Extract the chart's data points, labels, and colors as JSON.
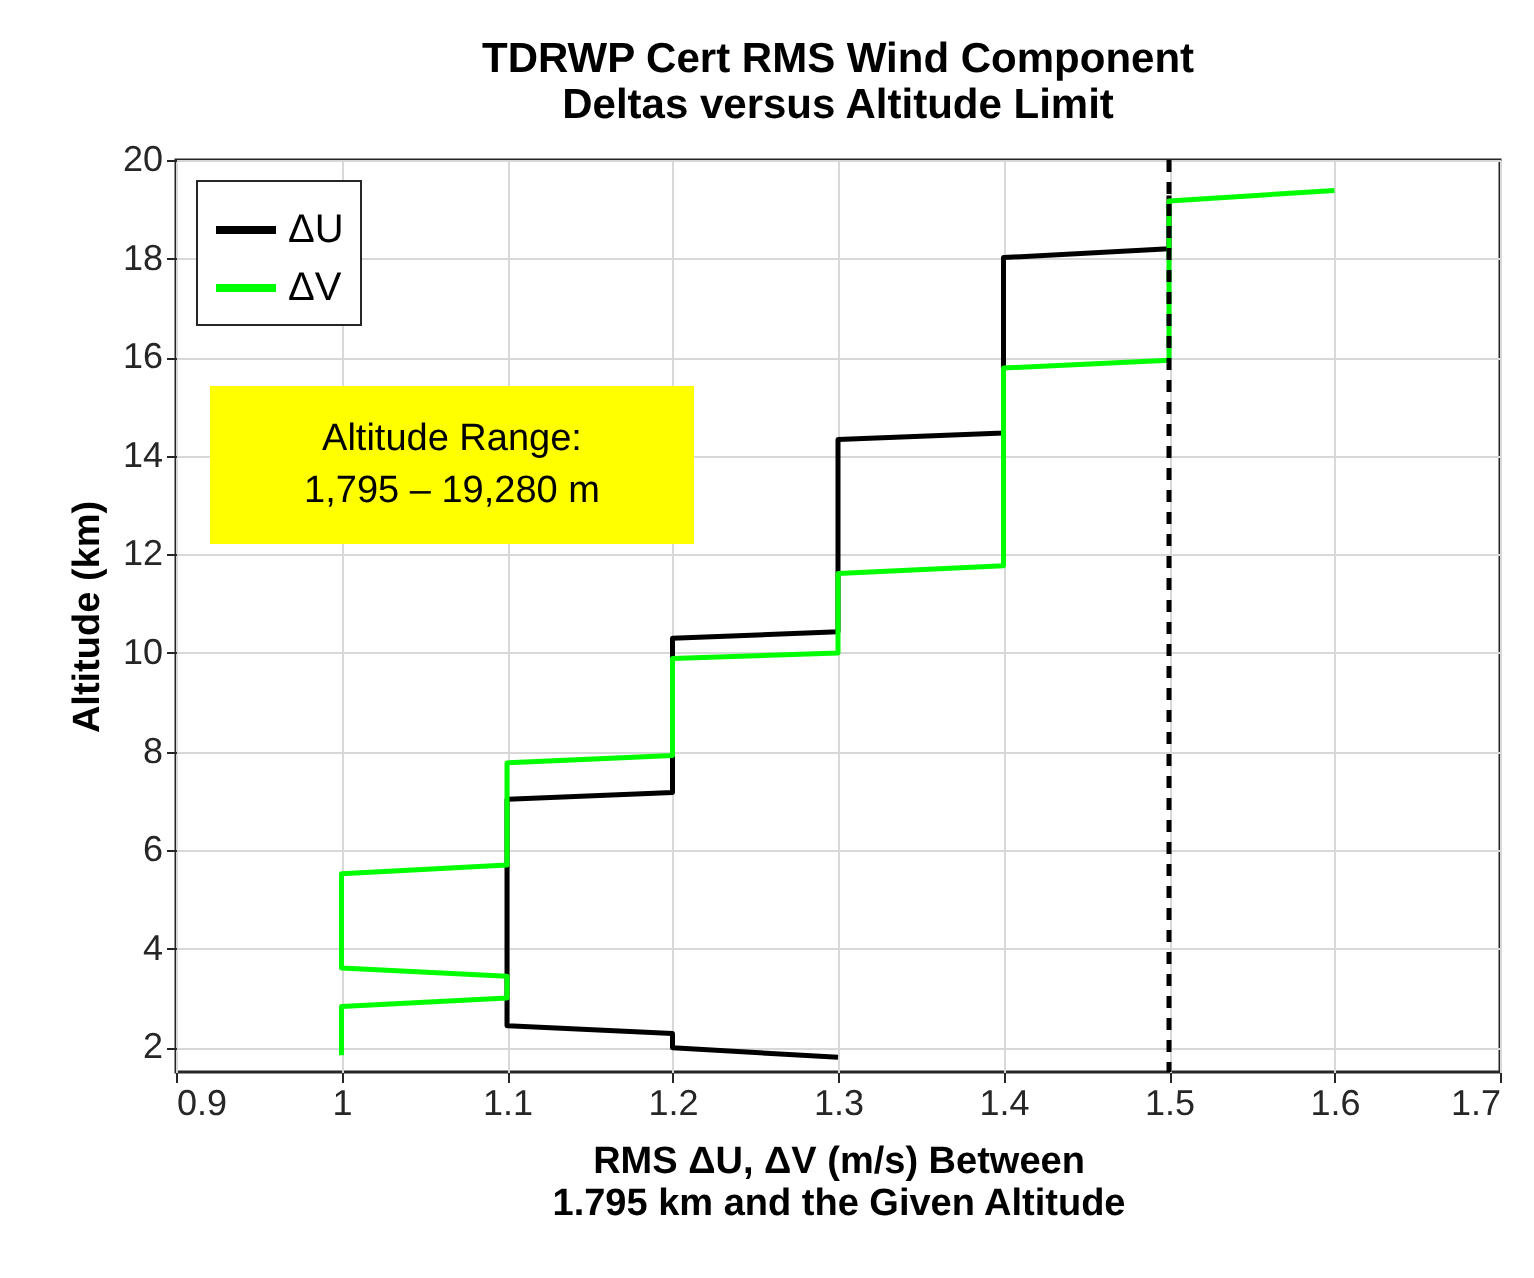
{
  "chart_data": {
    "type": "line",
    "title": "TDRWP Cert RMS Wind Component\nDeltas versus Altitude Limit",
    "xlabel": "RMS ΔU, ΔV (m/s) Between\n1.795 km and the Given Altitude",
    "ylabel": "Altitude (km)",
    "xlim": [
      0.9,
      1.7
    ],
    "xticks": [
      0.9,
      1,
      1.1,
      1.2,
      1.3,
      1.4,
      1.5,
      1.6,
      1.7
    ],
    "ylim": [
      1.5,
      20
    ],
    "yticks": [
      2,
      4,
      6,
      8,
      10,
      12,
      14,
      16,
      18,
      20
    ],
    "grid": true,
    "legend": "top left",
    "annotations": [
      "Altitude Range:\n1,795 – 19,280 m"
    ],
    "ref_lines": [
      {
        "axis": "x",
        "value": 1.5,
        "color": "#000000",
        "line_style": "dashed"
      }
    ],
    "series": [
      {
        "name": "ΔU",
        "color": "#000000",
        "x": [
          1.3,
          1.2,
          1.2,
          1.1,
          1.1,
          1.2,
          1.2,
          1.3,
          1.3,
          1.4,
          1.4,
          1.5,
          1.5
        ],
        "values": [
          1.8,
          1.99,
          2.28,
          2.44,
          7.03,
          7.17,
          10.3,
          10.43,
          14.33,
          14.46,
          18.02,
          18.2,
          19.28
        ]
      },
      {
        "name": "ΔV",
        "color": "#00ff00",
        "x": [
          1.0,
          1.0,
          1.1,
          1.1,
          1.0,
          1.0,
          1.1,
          1.1,
          1.2,
          1.2,
          1.3,
          1.3,
          1.4,
          1.4,
          1.5,
          1.5,
          1.6
        ],
        "values": [
          1.84,
          2.83,
          3.0,
          3.44,
          3.61,
          5.52,
          5.7,
          7.77,
          7.92,
          9.89,
          10.0,
          11.61,
          11.77,
          15.78,
          15.94,
          19.17,
          19.38
        ]
      }
    ]
  }
}
